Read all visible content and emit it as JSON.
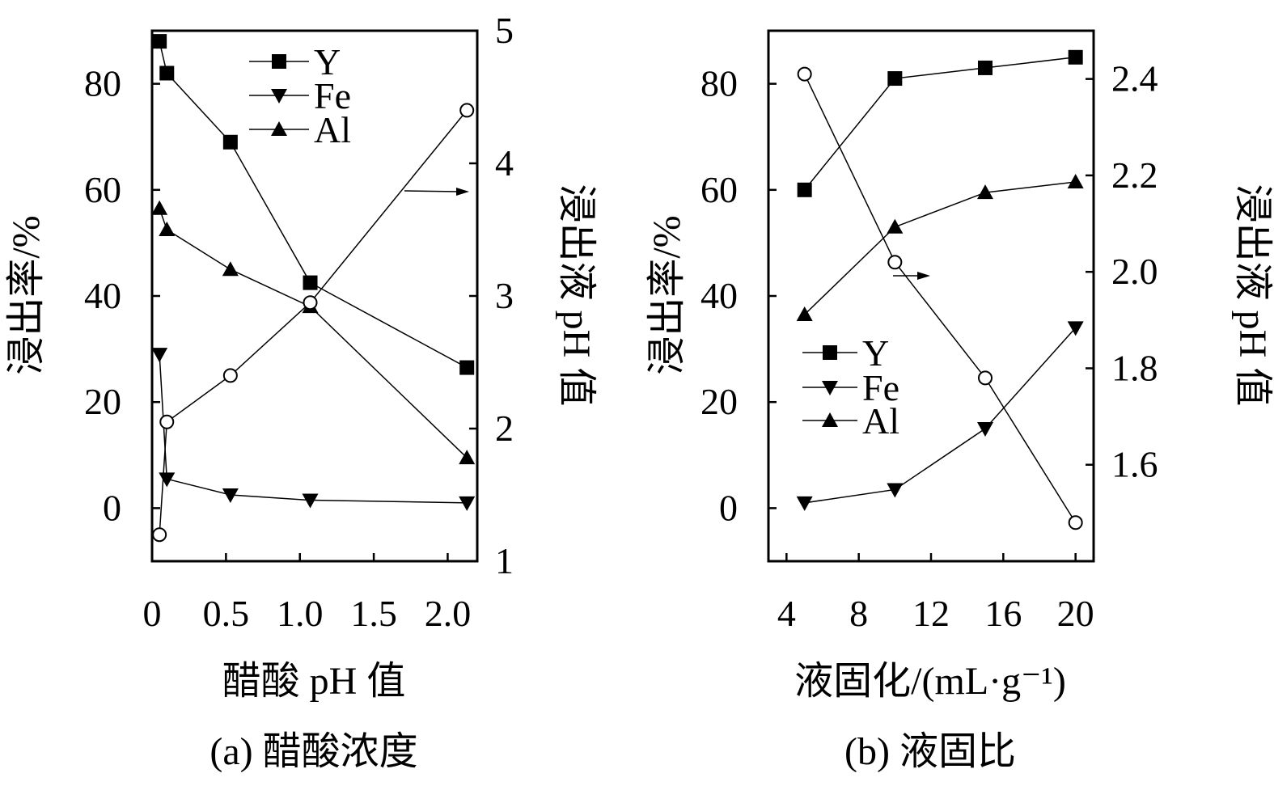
{
  "chart_data": [
    {
      "type": "line",
      "caption": "(a) 醋酸浓度",
      "xlabel": "醋酸 pH 值",
      "ylabel": "浸出率/%",
      "y2label": "浸出液 pH 值",
      "xlim": [
        0,
        2.2
      ],
      "ylim": [
        -10,
        90
      ],
      "y2lim": [
        1,
        5
      ],
      "xticks": [
        "0",
        "0.5",
        "1.0",
        "1.5",
        "2.0"
      ],
      "yticks": [
        "0",
        "20",
        "40",
        "60",
        "80"
      ],
      "y2ticks": [
        "1",
        "2",
        "3",
        "4",
        "5"
      ],
      "x": [
        0.05,
        0.1,
        0.53,
        1.07,
        2.13
      ],
      "series": [
        {
          "name": "Y",
          "marker": "square",
          "axis": "left",
          "values": [
            88,
            82,
            69,
            42.5,
            26.5
          ]
        },
        {
          "name": "Fe",
          "marker": "triangle-down",
          "axis": "left",
          "values": [
            29,
            5.5,
            2.5,
            1.5,
            1.0
          ]
        },
        {
          "name": "Al",
          "marker": "triangle-up",
          "axis": "left",
          "values": [
            56.5,
            52.5,
            45,
            38,
            9.5
          ]
        },
        {
          "name": "",
          "marker": "circle-open",
          "axis": "right",
          "values": [
            1.2,
            2.05,
            2.4,
            2.95,
            4.4
          ]
        }
      ],
      "legend_position": "top-center"
    },
    {
      "type": "line",
      "caption": "(b) 液固比",
      "xlabel": "液固化/(mL·g⁻¹)",
      "ylabel": "浸出率/%",
      "y2label": "浸出液 pH 值",
      "xlim": [
        3,
        21
      ],
      "ylim": [
        -10,
        90
      ],
      "y2lim": [
        1.4,
        2.5
      ],
      "xticks": [
        "4",
        "8",
        "12",
        "16",
        "20"
      ],
      "yticks": [
        "0",
        "20",
        "40",
        "60",
        "80"
      ],
      "y2ticks": [
        "1.6",
        "1.8",
        "2.0",
        "2.2",
        "2.4"
      ],
      "x": [
        5,
        10,
        15,
        20
      ],
      "series": [
        {
          "name": "Y",
          "marker": "square",
          "axis": "left",
          "values": [
            60,
            81,
            83,
            85
          ]
        },
        {
          "name": "Fe",
          "marker": "triangle-down",
          "axis": "left",
          "values": [
            1,
            3.5,
            15,
            34
          ]
        },
        {
          "name": "Al",
          "marker": "triangle-up",
          "axis": "left",
          "values": [
            36.5,
            53,
            59.5,
            61.5
          ]
        },
        {
          "name": "",
          "marker": "circle-open",
          "axis": "right",
          "values": [
            2.41,
            2.02,
            1.78,
            1.48
          ]
        }
      ],
      "legend_position": "center-left"
    }
  ]
}
